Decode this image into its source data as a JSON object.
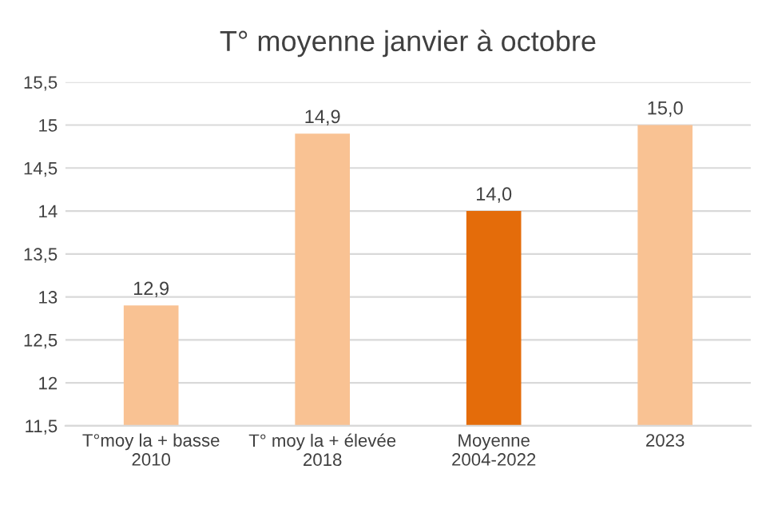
{
  "chart_data": {
    "type": "bar",
    "title": "T° moyenne janvier à octobre",
    "categories": [
      "T°moy la + basse\n2010",
      "T° moy la + élevée\n2018",
      "Moyenne\n2004-2022",
      "2023"
    ],
    "values": [
      12.9,
      14.9,
      14.0,
      15.0
    ],
    "colors": [
      "#f9c293",
      "#f9c293",
      "#e46c0a",
      "#f9c293"
    ],
    "value_labels": [
      "12,9",
      "14,9",
      "14,0",
      "15,0"
    ],
    "ylim": [
      11.5,
      15.5
    ],
    "yticks": [
      {
        "value": 11.5,
        "label": "11,5"
      },
      {
        "value": 12,
        "label": "12"
      },
      {
        "value": 12.5,
        "label": "12,5"
      },
      {
        "value": 13,
        "label": "13"
      },
      {
        "value": 13.5,
        "label": "13,5"
      },
      {
        "value": 14,
        "label": "14"
      },
      {
        "value": 14.5,
        "label": "14,5"
      },
      {
        "value": 15,
        "label": "15"
      },
      {
        "value": 15.5,
        "label": "15,5"
      }
    ],
    "grid": "y"
  }
}
